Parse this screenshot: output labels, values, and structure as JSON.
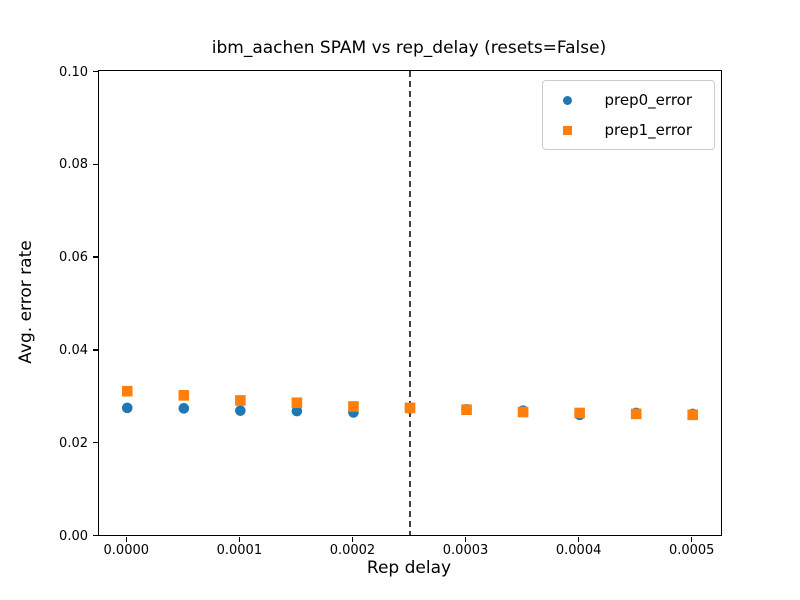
{
  "chart_data": {
    "type": "scatter",
    "title": "ibm_aachen SPAM vs rep_delay (resets=False)",
    "xlabel": "Rep delay",
    "ylabel": "Avg. error rate",
    "xlim": [
      -2.5e-05,
      0.000525
    ],
    "ylim": [
      0.0,
      0.1
    ],
    "grid": false,
    "x_ticks": {
      "values": [
        0.0,
        0.0001,
        0.0002,
        0.0003,
        0.0004,
        0.0005
      ],
      "labels": [
        "0.0000",
        "0.0001",
        "0.0002",
        "0.0003",
        "0.0004",
        "0.0005"
      ]
    },
    "y_ticks": {
      "values": [
        0.0,
        0.02,
        0.04,
        0.06,
        0.08,
        0.1
      ],
      "labels": [
        "0.00",
        "0.02",
        "0.04",
        "0.06",
        "0.08",
        "0.10"
      ]
    },
    "x": [
      0.0,
      5e-05,
      0.0001,
      0.00015,
      0.0002,
      0.00025,
      0.0003,
      0.00035,
      0.0004,
      0.00045,
      0.0005
    ],
    "series": [
      {
        "name": "prep0_error",
        "marker": "circle",
        "color": "#1f77b4",
        "values": [
          0.0274,
          0.0273,
          0.0268,
          0.0267,
          0.0264,
          0.0273,
          0.0271,
          0.0268,
          0.0259,
          0.0263,
          0.0261
        ]
      },
      {
        "name": "prep1_error",
        "marker": "square",
        "color": "#ff7f0e",
        "values": [
          0.031,
          0.0301,
          0.029,
          0.0285,
          0.0277,
          0.0274,
          0.027,
          0.0265,
          0.0263,
          0.0261,
          0.0259
        ]
      }
    ],
    "vline": {
      "x": 0.00025,
      "style": "dashed",
      "color": "#000000"
    },
    "legend": {
      "position": "upper right",
      "entries": [
        "prep0_error",
        "prep1_error"
      ]
    },
    "colors": {
      "frame": "#000000",
      "background": "#ffffff",
      "prep0": "#1f77b4",
      "prep1": "#ff7f0e"
    }
  }
}
